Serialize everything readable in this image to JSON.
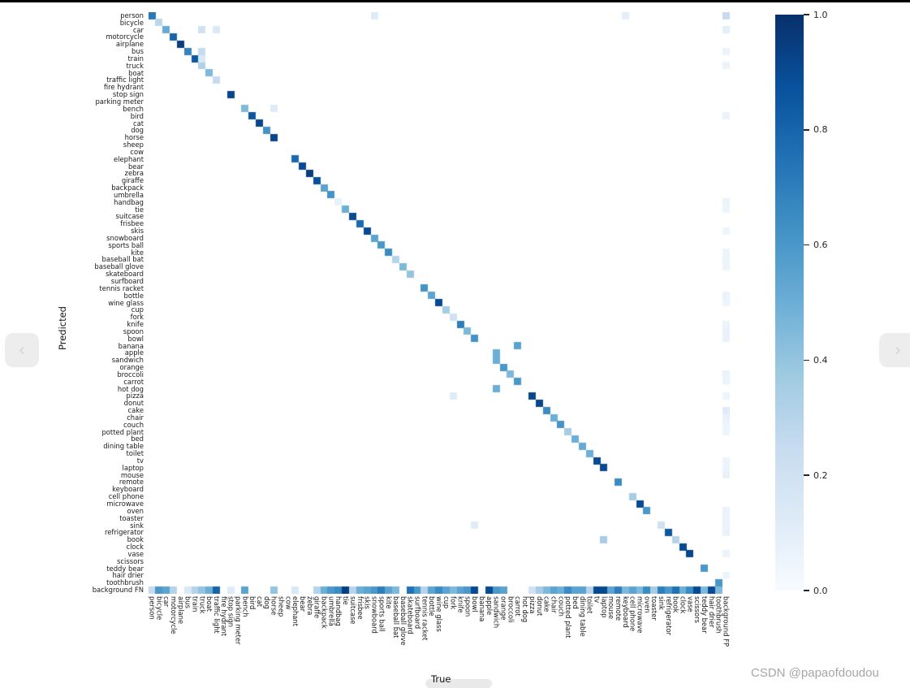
{
  "figure": {
    "ylabel": "Predicted",
    "xlabel": "True",
    "watermark": "CSDN @papaofdoudou"
  },
  "carousel": {
    "prev_label": "‹",
    "next_label": "›"
  },
  "scrollbar": {
    "present": true
  },
  "colorbar": {
    "tick_labels": [
      "1.0",
      "0.8",
      "0.6",
      "0.4",
      "0.2",
      "0.0"
    ],
    "tick_values": [
      1.0,
      0.8,
      0.6,
      0.4,
      0.2,
      0.0
    ],
    "top_color": "#08306b",
    "bottom_color": "#f7fbff"
  },
  "chart_data": {
    "type": "heatmap",
    "title": "",
    "xlabel": "True",
    "ylabel": "Predicted",
    "colormap": "Blues",
    "vmin": 0.0,
    "vmax": 1.0,
    "legend_position": "right-colorbar",
    "grid": false,
    "classes": [
      "person",
      "bicycle",
      "car",
      "motorcycle",
      "airplane",
      "bus",
      "train",
      "truck",
      "boat",
      "traffic light",
      "fire hydrant",
      "stop sign",
      "parking meter",
      "bench",
      "bird",
      "cat",
      "dog",
      "horse",
      "sheep",
      "cow",
      "elephant",
      "bear",
      "zebra",
      "giraffe",
      "backpack",
      "umbrella",
      "handbag",
      "tie",
      "suitcase",
      "frisbee",
      "skis",
      "snowboard",
      "sports ball",
      "kite",
      "baseball bat",
      "baseball glove",
      "skateboard",
      "surfboard",
      "tennis racket",
      "bottle",
      "wine glass",
      "cup",
      "fork",
      "knife",
      "spoon",
      "bowl",
      "banana",
      "apple",
      "sandwich",
      "orange",
      "broccoli",
      "carrot",
      "hot dog",
      "pizza",
      "donut",
      "cake",
      "chair",
      "couch",
      "potted plant",
      "bed",
      "dining table",
      "toilet",
      "tv",
      "laptop",
      "mouse",
      "remote",
      "keyboard",
      "cell phone",
      "microwave",
      "oven",
      "toaster",
      "sink",
      "refrigerator",
      "book",
      "clock",
      "vase",
      "scissors",
      "teddy bear",
      "hair drier",
      "toothbrush"
    ],
    "extra_row_label": "background FN",
    "extra_col_label": "background FP",
    "diagonal": [
      0.72,
      0.28,
      0.52,
      0.8,
      0.95,
      0.68,
      0.85,
      0.32,
      0.45,
      0.25,
      0,
      0.92,
      0,
      0.45,
      0.85,
      0.92,
      0.62,
      0.92,
      0,
      0,
      0.78,
      0.9,
      0.95,
      0.88,
      0.55,
      0.62,
      0.08,
      0.5,
      0.9,
      0.78,
      0.9,
      0.55,
      0.6,
      0.65,
      0.3,
      0.45,
      0.4,
      0,
      0.62,
      0.55,
      0.9,
      0.35,
      0.2,
      0.7,
      0.45,
      0.62,
      0,
      0,
      0.5,
      0.6,
      0.45,
      0.6,
      0,
      0.92,
      0.92,
      0.65,
      0.5,
      0.62,
      0.35,
      0.5,
      0.52,
      0.5,
      0.9,
      0.9,
      0,
      0.65,
      0,
      0.35,
      0.9,
      0.6,
      0,
      0.2,
      0.85,
      0.3,
      0.9,
      0.92,
      0,
      0.6,
      0,
      0.6
    ],
    "off_diagonal": [
      [
        0,
        31,
        0.12
      ],
      [
        0,
        66,
        0.1
      ],
      [
        2,
        7,
        0.2
      ],
      [
        2,
        9,
        0.14
      ],
      [
        5,
        7,
        0.25
      ],
      [
        6,
        7,
        0.15
      ],
      [
        13,
        17,
        0.12
      ],
      [
        46,
        51,
        0.55
      ],
      [
        47,
        48,
        0.5
      ],
      [
        52,
        48,
        0.5
      ],
      [
        53,
        42,
        0.12
      ],
      [
        71,
        45,
        0.12
      ],
      [
        73,
        63,
        0.35
      ]
    ],
    "background_fn_row": [
      0.25,
      0.6,
      0.55,
      0.3,
      0,
      0.15,
      0.3,
      0.4,
      0.5,
      0.8,
      0,
      0.12,
      0,
      0.55,
      0,
      0,
      0,
      0.4,
      0,
      0,
      0.15,
      0,
      0,
      0.3,
      0.5,
      0.6,
      0.65,
      0.95,
      0.3,
      0.5,
      0.55,
      0.6,
      0.7,
      0.55,
      0.45,
      0,
      0.75,
      0.6,
      0.3,
      0.55,
      0.65,
      0.55,
      0.45,
      0.55,
      0.6,
      0.9,
      0,
      0.9,
      0.6,
      0.55,
      0,
      0,
      0,
      0.2,
      0.35,
      0.45,
      0.55,
      0.5,
      0.65,
      0.55,
      0.55,
      0.3,
      0.9,
      0.9,
      0.55,
      0.7,
      0.45,
      0.55,
      0.45,
      0.65,
      0.35,
      0.7,
      0.6,
      0.75,
      0.5,
      0.65,
      0.9,
      0.45,
      0.9,
      0.45
    ],
    "background_fp_col": [
      [
        0,
        0.25
      ],
      [
        2,
        0.1
      ],
      [
        5,
        0.06
      ],
      [
        7,
        0.06
      ],
      [
        14,
        0.06
      ],
      [
        26,
        0.06
      ],
      [
        27,
        0.05
      ],
      [
        30,
        0.05
      ],
      [
        33,
        0.05
      ],
      [
        34,
        0.06
      ],
      [
        35,
        0.05
      ],
      [
        39,
        0.06
      ],
      [
        40,
        0.05
      ],
      [
        43,
        0.06
      ],
      [
        44,
        0.07
      ],
      [
        45,
        0.07
      ],
      [
        50,
        0.06
      ],
      [
        51,
        0.05
      ],
      [
        53,
        0.05
      ],
      [
        55,
        0.12
      ],
      [
        56,
        0.07
      ],
      [
        57,
        0.05
      ],
      [
        58,
        0.05
      ],
      [
        62,
        0.05
      ],
      [
        63,
        0.05
      ],
      [
        64,
        0.08
      ],
      [
        69,
        0.06
      ],
      [
        70,
        0.06
      ],
      [
        71,
        0.06
      ],
      [
        72,
        0.07
      ],
      [
        75,
        0.06
      ],
      [
        78,
        0.05
      ]
    ],
    "colormap_stops": [
      [
        0.0,
        "#f7fbff"
      ],
      [
        0.125,
        "#deebf7"
      ],
      [
        0.25,
        "#c6dbef"
      ],
      [
        0.375,
        "#9ecae1"
      ],
      [
        0.5,
        "#6baed6"
      ],
      [
        0.625,
        "#4292c6"
      ],
      [
        0.75,
        "#2171b5"
      ],
      [
        0.875,
        "#08519c"
      ],
      [
        1.0,
        "#08306b"
      ]
    ]
  }
}
